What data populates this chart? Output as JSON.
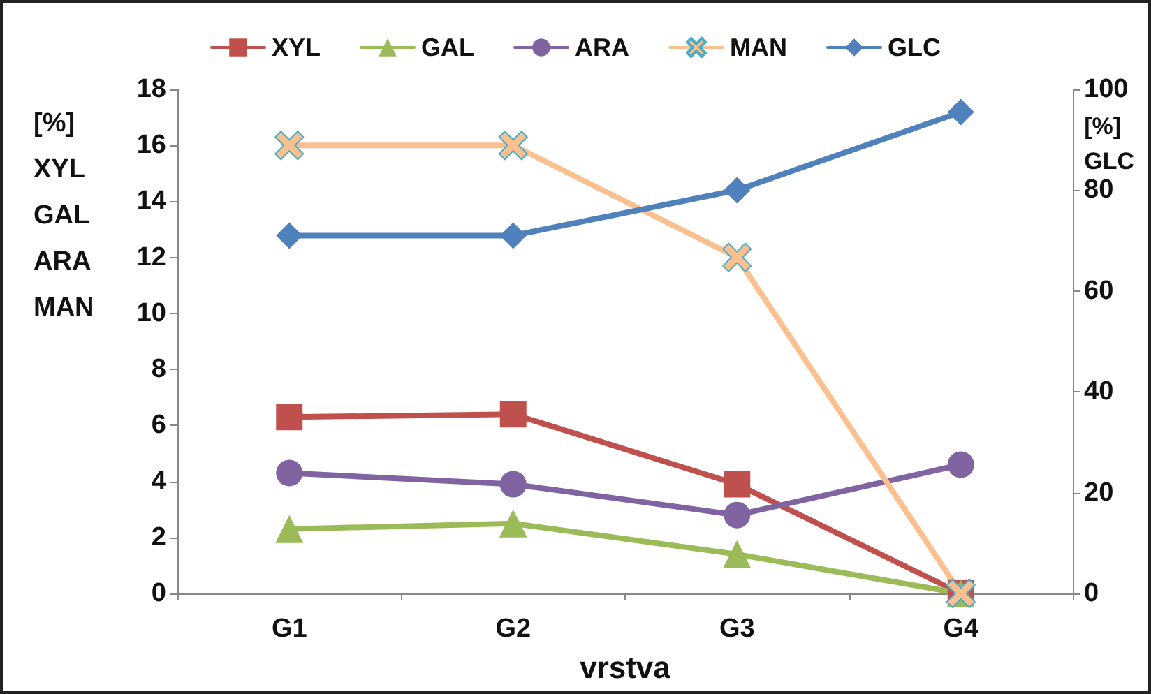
{
  "chart_data": {
    "type": "line",
    "xlabel": "vrstva",
    "ylabel": "[%]\nXYL\nGAL\nARA\nMAN",
    "y2label": "[%]\nGLC",
    "categories": [
      "G1",
      "G2",
      "G3",
      "G4"
    ],
    "series": [
      {
        "name": "XYL",
        "color": "#c0504d",
        "marker": "square",
        "values": [
          6.3,
          6.4,
          3.9,
          0
        ]
      },
      {
        "name": "GAL",
        "color": "#9bbb59",
        "marker": "triangle",
        "values": [
          2.3,
          2.5,
          1.4,
          0
        ]
      },
      {
        "name": "ARA",
        "color": "#8064a2",
        "marker": "circle",
        "values": [
          4.3,
          3.9,
          2.8,
          4.6
        ]
      },
      {
        "name": "MAN",
        "color": "#fac090",
        "marker": "cross",
        "values": [
          16,
          16,
          12,
          0
        ]
      },
      {
        "name": "GLC",
        "color": "#4f81bd",
        "marker": "diamond",
        "axis": "y2",
        "values": [
          71,
          71,
          80,
          95.5
        ]
      }
    ],
    "ylim": [
      0,
      18
    ],
    "yticks": [
      0,
      2,
      4,
      6,
      8,
      10,
      12,
      14,
      16,
      18
    ],
    "y2lim": [
      0,
      100
    ],
    "y2ticks": [
      0,
      20,
      40,
      60,
      80,
      100
    ],
    "grid": false,
    "legend": "top",
    "line_style": "solid"
  }
}
